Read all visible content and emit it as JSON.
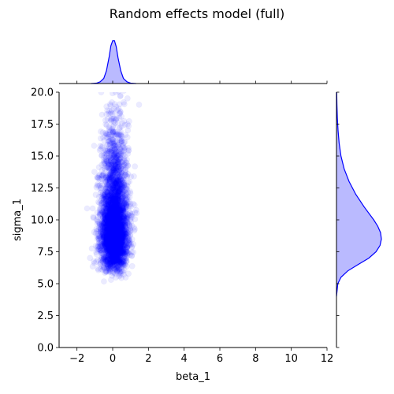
{
  "chart_data": {
    "type": "scatter",
    "title": "Random effects model (full)",
    "xlabel": "beta_1",
    "ylabel": "sigma_1",
    "xlim": [
      -3,
      12
    ],
    "ylim": [
      0,
      20
    ],
    "xticks": [
      -2,
      0,
      2,
      4,
      6,
      8,
      10,
      12
    ],
    "yticks": [
      0.0,
      2.5,
      5.0,
      7.5,
      10.0,
      12.5,
      15.0,
      17.5,
      20.0
    ],
    "xtick_labels": [
      "−2",
      "0",
      "2",
      "4",
      "6",
      "8",
      "10",
      "12"
    ],
    "ytick_labels": [
      "0.0",
      "2.5",
      "5.0",
      "7.5",
      "10.0",
      "12.5",
      "15.0",
      "17.5",
      "20.0"
    ],
    "point_color": "#0000ff",
    "point_alpha": 0.08,
    "n_points": 4000,
    "x_distribution": {
      "mean": 0.1,
      "sd": 0.38
    },
    "y_distribution": {
      "mode": 9.0,
      "min": 4.5,
      "max": 20.0
    },
    "marginal_x": {
      "x": [
        -1.2,
        -0.9,
        -0.7,
        -0.5,
        -0.35,
        -0.2,
        -0.1,
        0.0,
        0.1,
        0.2,
        0.3,
        0.45,
        0.6,
        0.8,
        1.0,
        1.3
      ],
      "density": [
        0.0,
        0.01,
        0.04,
        0.12,
        0.3,
        0.62,
        0.88,
        1.0,
        1.0,
        0.86,
        0.6,
        0.3,
        0.12,
        0.04,
        0.01,
        0.0
      ]
    },
    "marginal_y": {
      "y": [
        4.0,
        5.0,
        5.5,
        6.0,
        6.5,
        7.0,
        7.5,
        8.0,
        8.5,
        9.0,
        9.5,
        10.0,
        11.0,
        12.0,
        13.0,
        14.0,
        15.0,
        16.0,
        17.0,
        18.0,
        19.0,
        20.0
      ],
      "density": [
        0.0,
        0.03,
        0.1,
        0.25,
        0.48,
        0.72,
        0.88,
        0.97,
        1.0,
        0.98,
        0.92,
        0.83,
        0.62,
        0.43,
        0.28,
        0.17,
        0.1,
        0.06,
        0.035,
        0.02,
        0.01,
        0.005
      ]
    }
  }
}
